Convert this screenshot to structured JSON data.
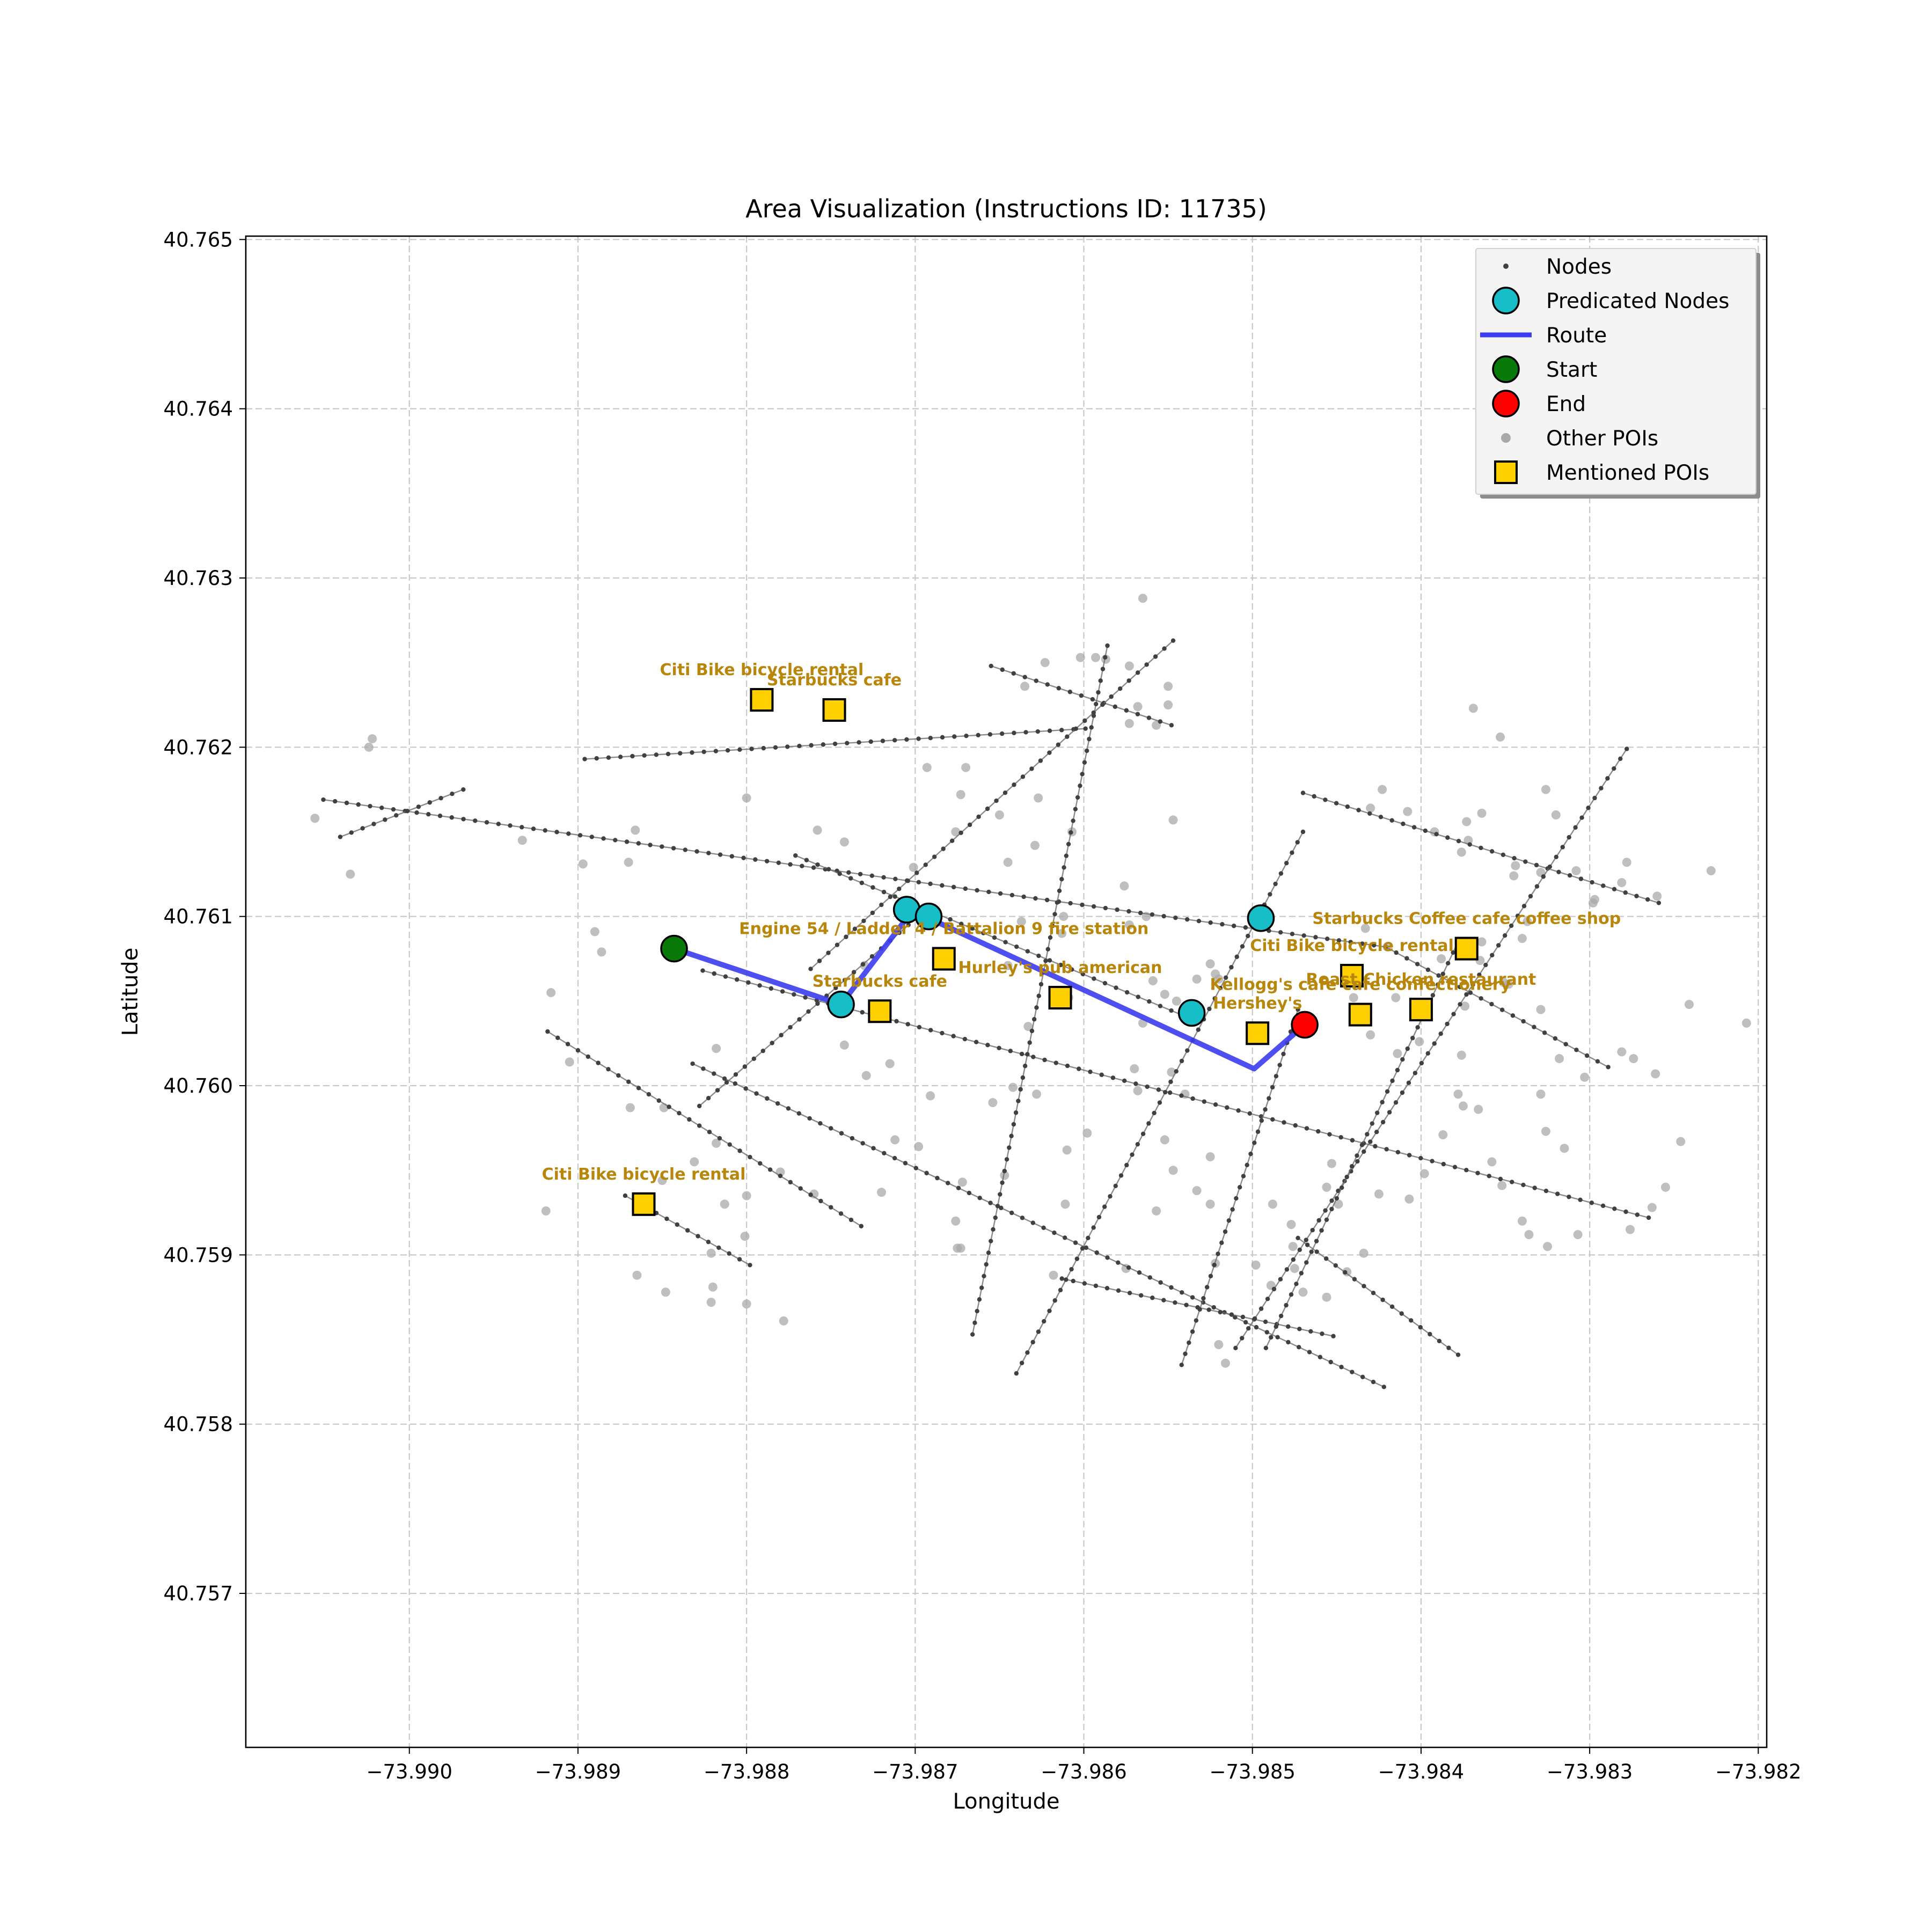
{
  "chart_data": {
    "type": "scatter",
    "title": "Area Visualization (Instructions ID: 11735)",
    "xlabel": "Longitude",
    "ylabel": "Latitude",
    "xlim": [
      -73.99097,
      -73.98195
    ],
    "ylim": [
      40.75609,
      40.76502
    ],
    "x_ticks": [
      -73.99,
      -73.989,
      -73.988,
      -73.987,
      -73.986,
      -73.985,
      -73.984,
      -73.983,
      -73.982
    ],
    "x_tick_labels": [
      "−73.990",
      "−73.989",
      "−73.988",
      "−73.987",
      "−73.986",
      "−73.985",
      "−73.984",
      "−73.983",
      "−73.982"
    ],
    "y_ticks": [
      40.757,
      40.758,
      40.759,
      40.76,
      40.761,
      40.762,
      40.763,
      40.764,
      40.765
    ],
    "y_tick_labels": [
      "40.757",
      "40.758",
      "40.759",
      "40.760",
      "40.761",
      "40.762",
      "40.763",
      "40.764",
      "40.765"
    ],
    "grid": true,
    "legend_position": "top-right",
    "colors": {
      "nodes": "#404040",
      "predicated": "#17bec7",
      "route": "#3c3cf0",
      "start": "#097a09",
      "end": "#ff0000",
      "other_poi": "#a9a9a9",
      "mentioned_poi": "#ffd000",
      "poi_label": "#b8860b"
    },
    "legend": [
      {
        "label": "Nodes",
        "marker": "small-dot"
      },
      {
        "label": "Predicated Nodes",
        "marker": "cyan-circle"
      },
      {
        "label": "Route",
        "marker": "blue-line"
      },
      {
        "label": "Start",
        "marker": "green-circle"
      },
      {
        "label": "End",
        "marker": "red-circle"
      },
      {
        "label": "Other POIs",
        "marker": "gray-dot"
      },
      {
        "label": "Mentioned POIs",
        "marker": "yellow-square"
      }
    ],
    "streets": [
      [
        [
          -73.99051,
          40.76169
        ],
        [
          -73.98421,
          40.76082
        ]
      ],
      [
        [
          -73.98421,
          40.76082
        ],
        [
          -73.98289,
          40.76011
        ]
      ],
      [
        [
          -73.98896,
          40.76193
        ],
        [
          -73.98599,
          40.76211
        ]
      ],
      [
        [
          -73.98771,
          40.76136
        ],
        [
          -73.98535,
          40.76039
        ]
      ],
      [
        [
          -73.98655,
          40.76248
        ],
        [
          -73.98548,
          40.76213
        ]
      ],
      [
        [
          -73.98826,
          40.76068
        ],
        [
          -73.98265,
          40.75922
        ]
      ],
      [
        [
          -73.98918,
          40.76032
        ],
        [
          -73.98732,
          40.75917
        ]
      ],
      [
        [
          -73.98832,
          40.76013
        ],
        [
          -73.98422,
          40.75822
        ]
      ],
      [
        [
          -73.98872,
          40.75935
        ],
        [
          -73.98798,
          40.75894
        ]
      ],
      [
        [
          -73.9847,
          40.76173
        ],
        [
          -73.98259,
          40.76108
        ]
      ],
      [
        [
          -73.98473,
          40.7591
        ],
        [
          -73.98378,
          40.75841
        ]
      ],
      [
        [
          -73.98613,
          40.75886
        ],
        [
          -73.98452,
          40.75852
        ]
      ],
      [
        [
          -73.98666,
          40.75853
        ],
        [
          -73.98586,
          40.7626
        ]
      ],
      [
        [
          -73.9864,
          40.7583
        ],
        [
          -73.9847,
          40.7615
        ]
      ],
      [
        [
          -73.98762,
          40.76069
        ],
        [
          -73.98547,
          40.76263
        ]
      ],
      [
        [
          -73.98542,
          40.75835
        ],
        [
          -73.98473,
          40.76045
        ]
      ],
      [
        [
          -73.9851,
          40.75845
        ],
        [
          -73.98278,
          40.76199
        ]
      ],
      [
        [
          -73.98492,
          40.75845
        ],
        [
          -73.98378,
          40.76085
        ]
      ],
      [
        [
          -73.98828,
          40.75988
        ],
        [
          -73.98704,
          40.76095
        ]
      ],
      [
        [
          -73.99041,
          40.76147
        ],
        [
          -73.98968,
          40.76175
        ]
      ]
    ],
    "route": [
      [
        -73.98843,
        40.76081
      ],
      [
        -73.98744,
        40.76048
      ],
      [
        -73.98705,
        40.76099
      ],
      [
        -73.98692,
        40.76099
      ],
      [
        -73.98499,
        40.7601
      ],
      [
        -73.98469,
        40.76036
      ]
    ],
    "predicated_nodes": [
      [
        -73.98744,
        40.76048
      ],
      [
        -73.98705,
        40.76104
      ],
      [
        -73.98692,
        40.761
      ],
      [
        -73.98536,
        40.76043
      ],
      [
        -73.98495,
        40.76099
      ]
    ],
    "start": [
      -73.98843,
      40.76081
    ],
    "end": [
      -73.98469,
      40.76036
    ],
    "mentioned_pois": [
      {
        "name": "Citi Bike bicycle rental",
        "lon": -73.98791,
        "lat": 40.76228
      },
      {
        "name": "Starbucks cafe",
        "lon": -73.98748,
        "lat": 40.76222
      },
      {
        "name": "Engine 54 / Ladder 4 / Battalion 9 fire station",
        "lon": -73.98683,
        "lat": 40.76075
      },
      {
        "name": "Starbucks cafe",
        "lon": -73.98721,
        "lat": 40.76044
      },
      {
        "name": "Hurley's pub american",
        "lon": -73.98614,
        "lat": 40.76052
      },
      {
        "name": "Hershey's",
        "lon": -73.98497,
        "lat": 40.76031
      },
      {
        "name": "Kellogg's cafe cafe confectionery",
        "lon": -73.98436,
        "lat": 40.76042
      },
      {
        "name": "Citi Bike bicycle rental",
        "lon": -73.98441,
        "lat": 40.76065
      },
      {
        "name": "Starbucks Coffee cafe coffee shop",
        "lon": -73.98373,
        "lat": 40.76081
      },
      {
        "name": "Roast Chicken restaurant",
        "lon": -73.984,
        "lat": 40.76045
      },
      {
        "name": "Citi Bike bicycle rental",
        "lon": -73.98861,
        "lat": 40.7593
      }
    ],
    "other_pois": [
      [
        -73.99056,
        40.76158
      ],
      [
        -73.99035,
        40.76125
      ],
      [
        -73.99024,
        40.762
      ],
      [
        -73.99022,
        40.76205
      ],
      [
        -73.98933,
        40.76145
      ],
      [
        -73.98897,
        40.76131
      ],
      [
        -73.98866,
        40.76151
      ],
      [
        -73.9887,
        40.76132
      ],
      [
        -73.9889,
        40.76091
      ],
      [
        -73.98886,
        40.76079
      ],
      [
        -73.98916,
        40.76055
      ],
      [
        -73.98905,
        40.76014
      ],
      [
        -73.98869,
        40.75987
      ],
      [
        -73.98849,
        40.75987
      ],
      [
        -73.98831,
        40.75955
      ],
      [
        -73.9885,
        40.75944
      ],
      [
        -73.98919,
        40.75926
      ],
      [
        -73.98813,
        40.7593
      ],
      [
        -73.98818,
        40.75966
      ],
      [
        -73.988,
        40.75935
      ],
      [
        -73.98801,
        40.75911
      ],
      [
        -73.98821,
        40.75901
      ],
      [
        -73.98848,
        40.75878
      ],
      [
        -73.9882,
        40.75881
      ],
      [
        -73.98865,
        40.75888
      ],
      [
        -73.98821,
        40.75872
      ],
      [
        -73.988,
        40.75871
      ],
      [
        -73.98778,
        40.75861
      ],
      [
        -73.9878,
        40.75949
      ],
      [
        -73.9876,
        40.75936
      ],
      [
        -73.98818,
        40.76022
      ],
      [
        -73.988,
        40.7617
      ],
      [
        -73.98758,
        40.76151
      ],
      [
        -73.98742,
        40.76144
      ],
      [
        -73.9873,
        40.76071
      ],
      [
        -73.98701,
        40.76129
      ],
      [
        -73.98715,
        40.76013
      ],
      [
        -73.98729,
        40.76006
      ],
      [
        -73.98742,
        40.76024
      ],
      [
        -73.98712,
        40.75968
      ],
      [
        -73.98691,
        40.75994
      ],
      [
        -73.98698,
        40.75964
      ],
      [
        -73.9872,
        40.75937
      ],
      [
        -73.98672,
        40.75943
      ],
      [
        -73.98676,
        40.7592
      ],
      [
        -73.98673,
        40.75904
      ],
      [
        -73.98675,
        40.75904
      ],
      [
        -73.98693,
        40.76188
      ],
      [
        -73.9867,
        40.76188
      ],
      [
        -73.98673,
        40.76172
      ],
      [
        -73.98676,
        40.7615
      ],
      [
        -73.9865,
        40.7616
      ],
      [
        -73.98645,
        40.76132
      ],
      [
        -73.98629,
        40.76142
      ],
      [
        -73.98627,
        40.7617
      ],
      [
        -73.98607,
        40.7615
      ],
      [
        -73.98637,
        40.76097
      ],
      [
        -73.98645,
        40.76071
      ],
      [
        -73.98613,
        40.7609
      ],
      [
        -73.98609,
        40.76052
      ],
      [
        -73.98633,
        40.76035
      ],
      [
        -73.98628,
        40.75995
      ],
      [
        -73.98642,
        40.75999
      ],
      [
        -73.98654,
        40.7599
      ],
      [
        -73.98647,
        40.75947
      ],
      [
        -73.9861,
        40.75962
      ],
      [
        -73.98598,
        40.75972
      ],
      [
        -73.98611,
        40.7593
      ],
      [
        -73.98618,
        40.75888
      ],
      [
        -73.98612,
        40.761
      ],
      [
        -73.98573,
        40.76095
      ],
      [
        -73.98563,
        40.761
      ],
      [
        -73.98587,
        40.76252
      ],
      [
        -73.98573,
        40.76248
      ],
      [
        -73.98568,
        40.76224
      ],
      [
        -73.98573,
        40.76214
      ],
      [
        -73.98557,
        40.76213
      ],
      [
        -73.9855,
        40.76225
      ],
      [
        -73.9855,
        40.76236
      ],
      [
        -73.98565,
        40.76288
      ],
      [
        -73.98635,
        40.76236
      ],
      [
        -73.98623,
        40.7625
      ],
      [
        -73.98593,
        40.76253
      ],
      [
        -73.98602,
        40.76253
      ],
      [
        -73.98547,
        40.76157
      ],
      [
        -73.98576,
        40.76118
      ],
      [
        -73.98559,
        40.76062
      ],
      [
        -73.98552,
        40.76054
      ],
      [
        -73.98565,
        40.76037
      ],
      [
        -73.98545,
        40.7605
      ],
      [
        -73.9857,
        40.7601
      ],
      [
        -73.98548,
        40.76008
      ],
      [
        -73.98568,
        40.75997
      ],
      [
        -73.9852,
        40.76063
      ],
      [
        -73.98525,
        40.76072
      ],
      [
        -73.98533,
        40.76063
      ],
      [
        -73.98522,
        40.76066
      ],
      [
        -73.9854,
        40.75995
      ],
      [
        -73.98552,
        40.75968
      ],
      [
        -73.98525,
        40.75958
      ],
      [
        -73.98533,
        40.75938
      ],
      [
        -73.98575,
        40.75892
      ],
      [
        -73.98557,
        40.75926
      ],
      [
        -73.98547,
        40.7595
      ],
      [
        -73.98525,
        40.7593
      ],
      [
        -73.98522,
        40.75895
      ],
      [
        -73.98488,
        40.7593
      ],
      [
        -73.98477,
        40.75918
      ],
      [
        -73.98456,
        40.7594
      ],
      [
        -73.98453,
        40.75954
      ],
      [
        -73.98449,
        40.7593
      ],
      [
        -73.98476,
        40.75905
      ],
      [
        -73.98498,
        40.75894
      ],
      [
        -73.98475,
        40.75892
      ],
      [
        -73.9852,
        40.75847
      ],
      [
        -73.98516,
        40.75836
      ],
      [
        -73.98489,
        40.75882
      ],
      [
        -73.9847,
        40.75878
      ],
      [
        -73.98456,
        40.75875
      ],
      [
        -73.98444,
        40.7589
      ],
      [
        -73.98434,
        40.75901
      ],
      [
        -73.98425,
        40.75936
      ],
      [
        -73.98407,
        40.75933
      ],
      [
        -73.98398,
        40.75948
      ],
      [
        -73.98387,
        40.75971
      ],
      [
        -73.98378,
        40.75995
      ],
      [
        -73.98375,
        40.75988
      ],
      [
        -73.98366,
        40.75986
      ],
      [
        -73.98358,
        40.75955
      ],
      [
        -73.98352,
        40.75941
      ],
      [
        -73.9834,
        40.7592
      ],
      [
        -73.98325,
        40.75905
      ],
      [
        -73.98336,
        40.75912
      ],
      [
        -73.98307,
        40.75912
      ],
      [
        -73.98263,
        40.75928
      ],
      [
        -73.98276,
        40.75915
      ],
      [
        -73.98255,
        40.7594
      ],
      [
        -73.98246,
        40.75967
      ],
      [
        -73.98241,
        40.76048
      ],
      [
        -73.98261,
        40.76007
      ],
      [
        -73.98274,
        40.76016
      ],
      [
        -73.98281,
        40.7602
      ],
      [
        -73.98303,
        40.76005
      ],
      [
        -73.98318,
        40.76016
      ],
      [
        -73.98329,
        40.76045
      ],
      [
        -73.98348,
        40.7606
      ],
      [
        -73.9834,
        40.76087
      ],
      [
        -73.98337,
        40.76097
      ],
      [
        -73.98351,
        40.76061
      ],
      [
        -73.98365,
        40.76074
      ],
      [
        -73.98374,
        40.76047
      ],
      [
        -73.98388,
        40.76075
      ],
      [
        -73.9842,
        40.76082
      ],
      [
        -73.98433,
        40.76093
      ],
      [
        -73.9844,
        40.76052
      ],
      [
        -73.9843,
        40.7603
      ],
      [
        -73.98414,
        40.76019
      ],
      [
        -73.98415,
        40.76052
      ],
      [
        -73.98401,
        40.76026
      ],
      [
        -73.98376,
        40.76018
      ],
      [
        -73.98329,
        40.75995
      ],
      [
        -73.98326,
        40.75973
      ],
      [
        -73.98315,
        40.75963
      ],
      [
        -73.9843,
        40.76164
      ],
      [
        -73.98423,
        40.76175
      ],
      [
        -73.98408,
        40.76162
      ],
      [
        -73.98392,
        40.7615
      ],
      [
        -73.98376,
        40.76138
      ],
      [
        -73.98373,
        40.76156
      ],
      [
        -73.98372,
        40.76145
      ],
      [
        -73.98364,
        40.76161
      ],
      [
        -73.98369,
        40.76223
      ],
      [
        -73.98353,
        40.76206
      ],
      [
        -73.98326,
        40.76175
      ],
      [
        -73.9832,
        40.7616
      ],
      [
        -73.98329,
        40.76126
      ],
      [
        -73.98344,
        40.7613
      ],
      [
        -73.98345,
        40.76124
      ],
      [
        -73.98308,
        40.76127
      ],
      [
        -73.98297,
        40.7611
      ],
      [
        -73.98278,
        40.76132
      ],
      [
        -73.98281,
        40.7612
      ],
      [
        -73.9826,
        40.76112
      ],
      [
        -73.98228,
        40.76127
      ],
      [
        -73.98207,
        40.76037
      ],
      [
        -73.98298,
        40.76108
      ],
      [
        -73.98364,
        40.76085
      ]
    ]
  }
}
